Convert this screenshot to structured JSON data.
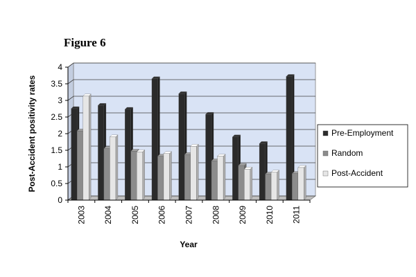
{
  "figure_title": "Figure 6",
  "chart_data": {
    "type": "bar",
    "title": "",
    "xlabel": "Year",
    "ylabel": "Post-Accident positivity rates",
    "ylim": [
      0,
      4
    ],
    "yticks": [
      "0",
      "0.5",
      "1",
      "1.5",
      "2",
      "2.5",
      "3",
      "3.5",
      "4"
    ],
    "categories": [
      "2003",
      "2004",
      "2005",
      "2006",
      "2007",
      "2008",
      "2009",
      "2010",
      "2011"
    ],
    "series": [
      {
        "name": "Pre-Employment",
        "values": [
          2.75,
          2.85,
          2.73,
          3.65,
          3.2,
          2.58,
          1.9,
          1.7,
          3.72
        ],
        "color": "#2b2b2b"
      },
      {
        "name": "Random",
        "values": [
          2.08,
          1.55,
          1.47,
          1.32,
          1.37,
          1.18,
          1.04,
          0.78,
          0.8
        ],
        "color": "#8c8c8c"
      },
      {
        "name": "Post-Accident",
        "values": [
          3.13,
          1.9,
          1.45,
          1.4,
          1.62,
          1.32,
          0.93,
          0.84,
          0.98
        ],
        "color": "#e6e6e6"
      }
    ],
    "grid": true,
    "legend_position": "right"
  }
}
